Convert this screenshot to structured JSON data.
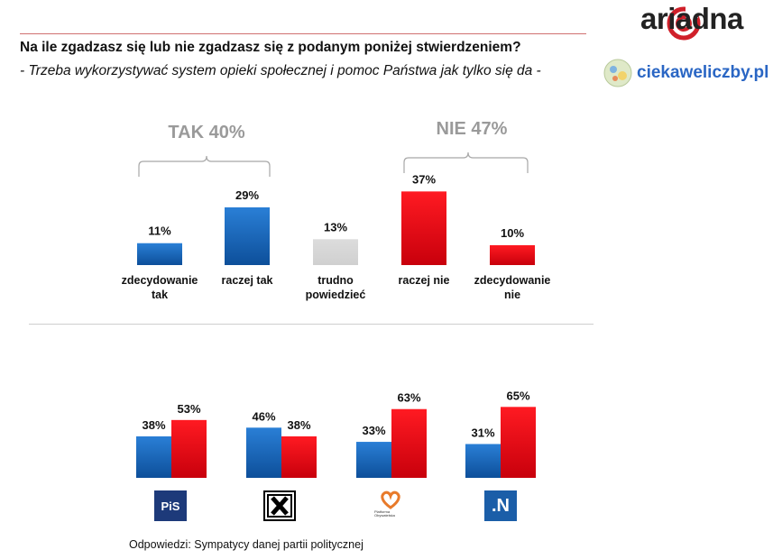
{
  "header": {
    "question": "Na ile zgadzasz się lub nie zgadzasz się z podanym poniżej stwierdzeniem?",
    "statement": "- Trzeba wykorzystywać system opieki społecznej i pomoc Państwa jak tylko się da -",
    "brand": "ariadna",
    "site": "ciekaweliczby.pl"
  },
  "colors": {
    "blue": "#1f6fc4",
    "red": "#e8101a",
    "gray": "#d9d9d9",
    "accent": "#d0202a"
  },
  "chart_data": [
    {
      "type": "bar",
      "title": "",
      "groups": [
        {
          "label": "TAK 40%",
          "categories": [
            "zdecydowanie tak",
            "raczej tak"
          ]
        },
        {
          "label": "NIE 47%",
          "categories": [
            "raczej nie",
            "zdecydowanie nie"
          ]
        }
      ],
      "categories": [
        "zdecydowanie\ntak",
        "raczej tak",
        "trudno\npowiedzieć",
        "raczej nie",
        "zdecydowanie\nnie"
      ],
      "values": [
        11,
        29,
        13,
        37,
        10
      ],
      "value_labels": [
        "11%",
        "29%",
        "13%",
        "37%",
        "10%"
      ],
      "colors": [
        "blue",
        "blue",
        "gray",
        "red",
        "red"
      ],
      "ylim": [
        0,
        40
      ]
    },
    {
      "type": "bar",
      "title": "",
      "categories": [
        "PiS",
        "Kukiz'15",
        "Platforma Obywatelska",
        ".N"
      ],
      "series": [
        {
          "name": "tak",
          "color": "blue",
          "values": [
            38,
            46,
            33,
            31
          ],
          "labels": [
            "38%",
            "46%",
            "33%",
            "31%"
          ]
        },
        {
          "name": "nie",
          "color": "red",
          "values": [
            53,
            38,
            63,
            65
          ],
          "labels": [
            "53%",
            "38%",
            "63%",
            "65%"
          ]
        }
      ],
      "ylim": [
        0,
        70
      ]
    }
  ],
  "parties": {
    "pis_label": "PiS",
    "po_label": "Platforma Obywatelska",
    "n_label": ".N"
  },
  "footnote": "Odpowiedzi: Sympatycy danej partii politycznej"
}
